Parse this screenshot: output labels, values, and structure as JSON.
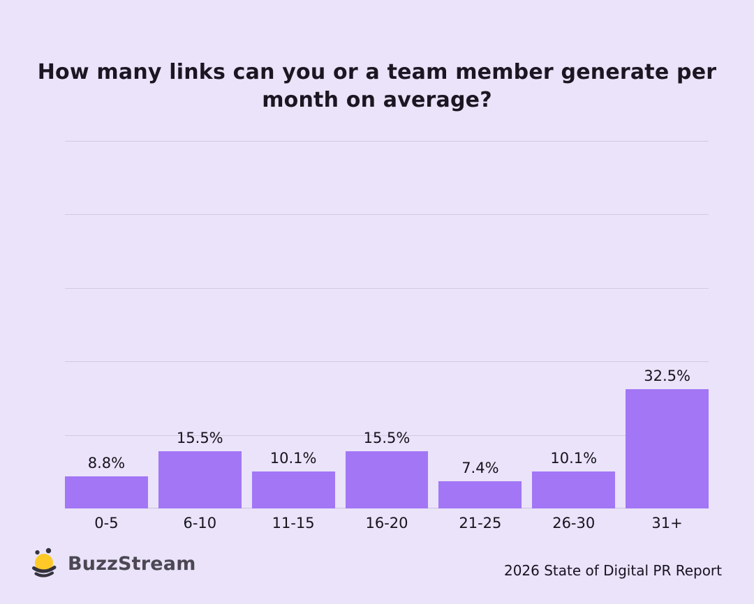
{
  "title": "How many links can you or a team member generate per month on average?",
  "chart_data": {
    "type": "bar",
    "title": "How many links can you or a team member generate per month on average?",
    "categories": [
      "0-5",
      "6-10",
      "11-15",
      "16-20",
      "21-25",
      "26-30",
      "31+"
    ],
    "values": [
      8.8,
      15.5,
      10.1,
      15.5,
      7.4,
      10.1,
      32.5
    ],
    "value_labels": [
      "8.8%",
      "15.5%",
      "10.1%",
      "15.5%",
      "7.4%",
      "10.1%",
      "32.5%"
    ],
    "xlabel": "",
    "ylabel": "",
    "ylim": [
      0,
      100
    ],
    "gridline_step": 20,
    "grid": true,
    "legend": "none",
    "bar_color": "#a276f5",
    "background_color": "#eae3f9",
    "gridline_color": "#d2cae2",
    "label_color": "#16121d"
  },
  "footer": {
    "brand": "BuzzStream",
    "brand_icon": "buzzstream-bee-icon",
    "bee_yellow": "#ffc928",
    "bee_dark": "#34323c",
    "report": "2026 State of Digital PR Report"
  }
}
